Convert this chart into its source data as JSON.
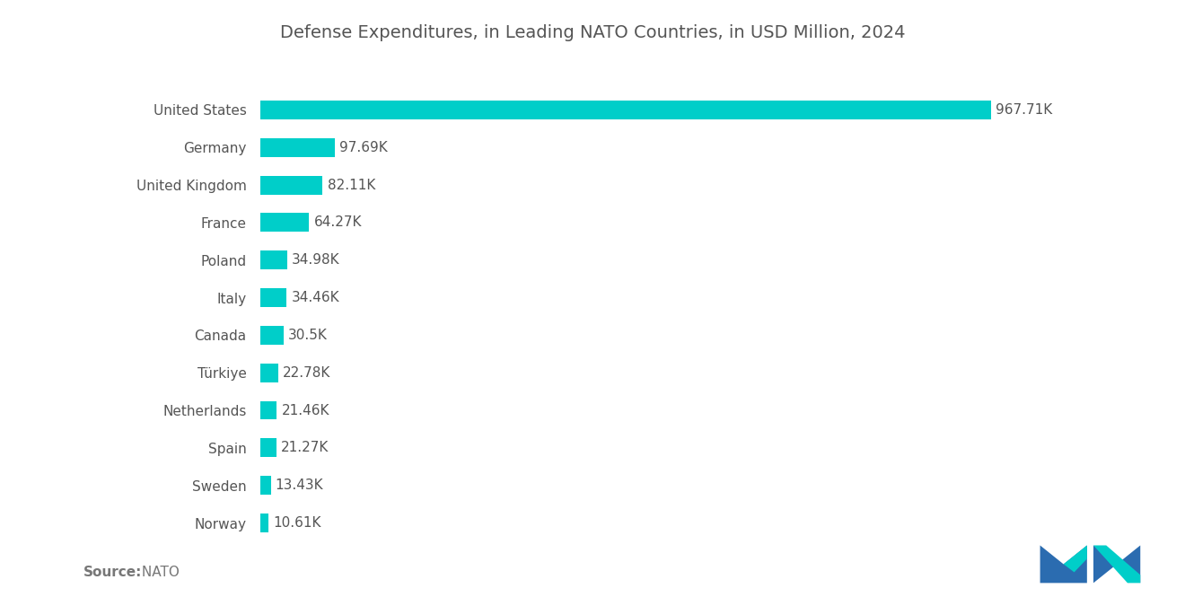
{
  "title": "Defense Expenditures, in Leading NATO Countries, in USD Million, 2024",
  "source_bold": "Source:",
  "source_normal": " NATO",
  "categories": [
    "Norway",
    "Sweden",
    "Spain",
    "Netherlands",
    "Türkiye",
    "Canada",
    "Italy",
    "Poland",
    "France",
    "United Kingdom",
    "Germany",
    "United States"
  ],
  "values": [
    10.61,
    13.43,
    21.27,
    21.46,
    22.78,
    30.5,
    34.46,
    34.98,
    64.27,
    82.11,
    97.69,
    967.71
  ],
  "labels": [
    "10.61K",
    "13.43K",
    "21.27K",
    "21.46K",
    "22.78K",
    "30.5K",
    "34.46K",
    "34.98K",
    "64.27K",
    "82.11K",
    "97.69K",
    "967.71K"
  ],
  "bar_color": "#00CEC9",
  "title_color": "#555555",
  "label_color": "#555555",
  "ytick_color": "#555555",
  "source_color": "#777777",
  "background_color": "#ffffff",
  "title_fontsize": 14,
  "label_fontsize": 11,
  "ytick_fontsize": 11,
  "source_fontsize": 11,
  "xlim": [
    0,
    1130
  ],
  "bar_height": 0.5
}
